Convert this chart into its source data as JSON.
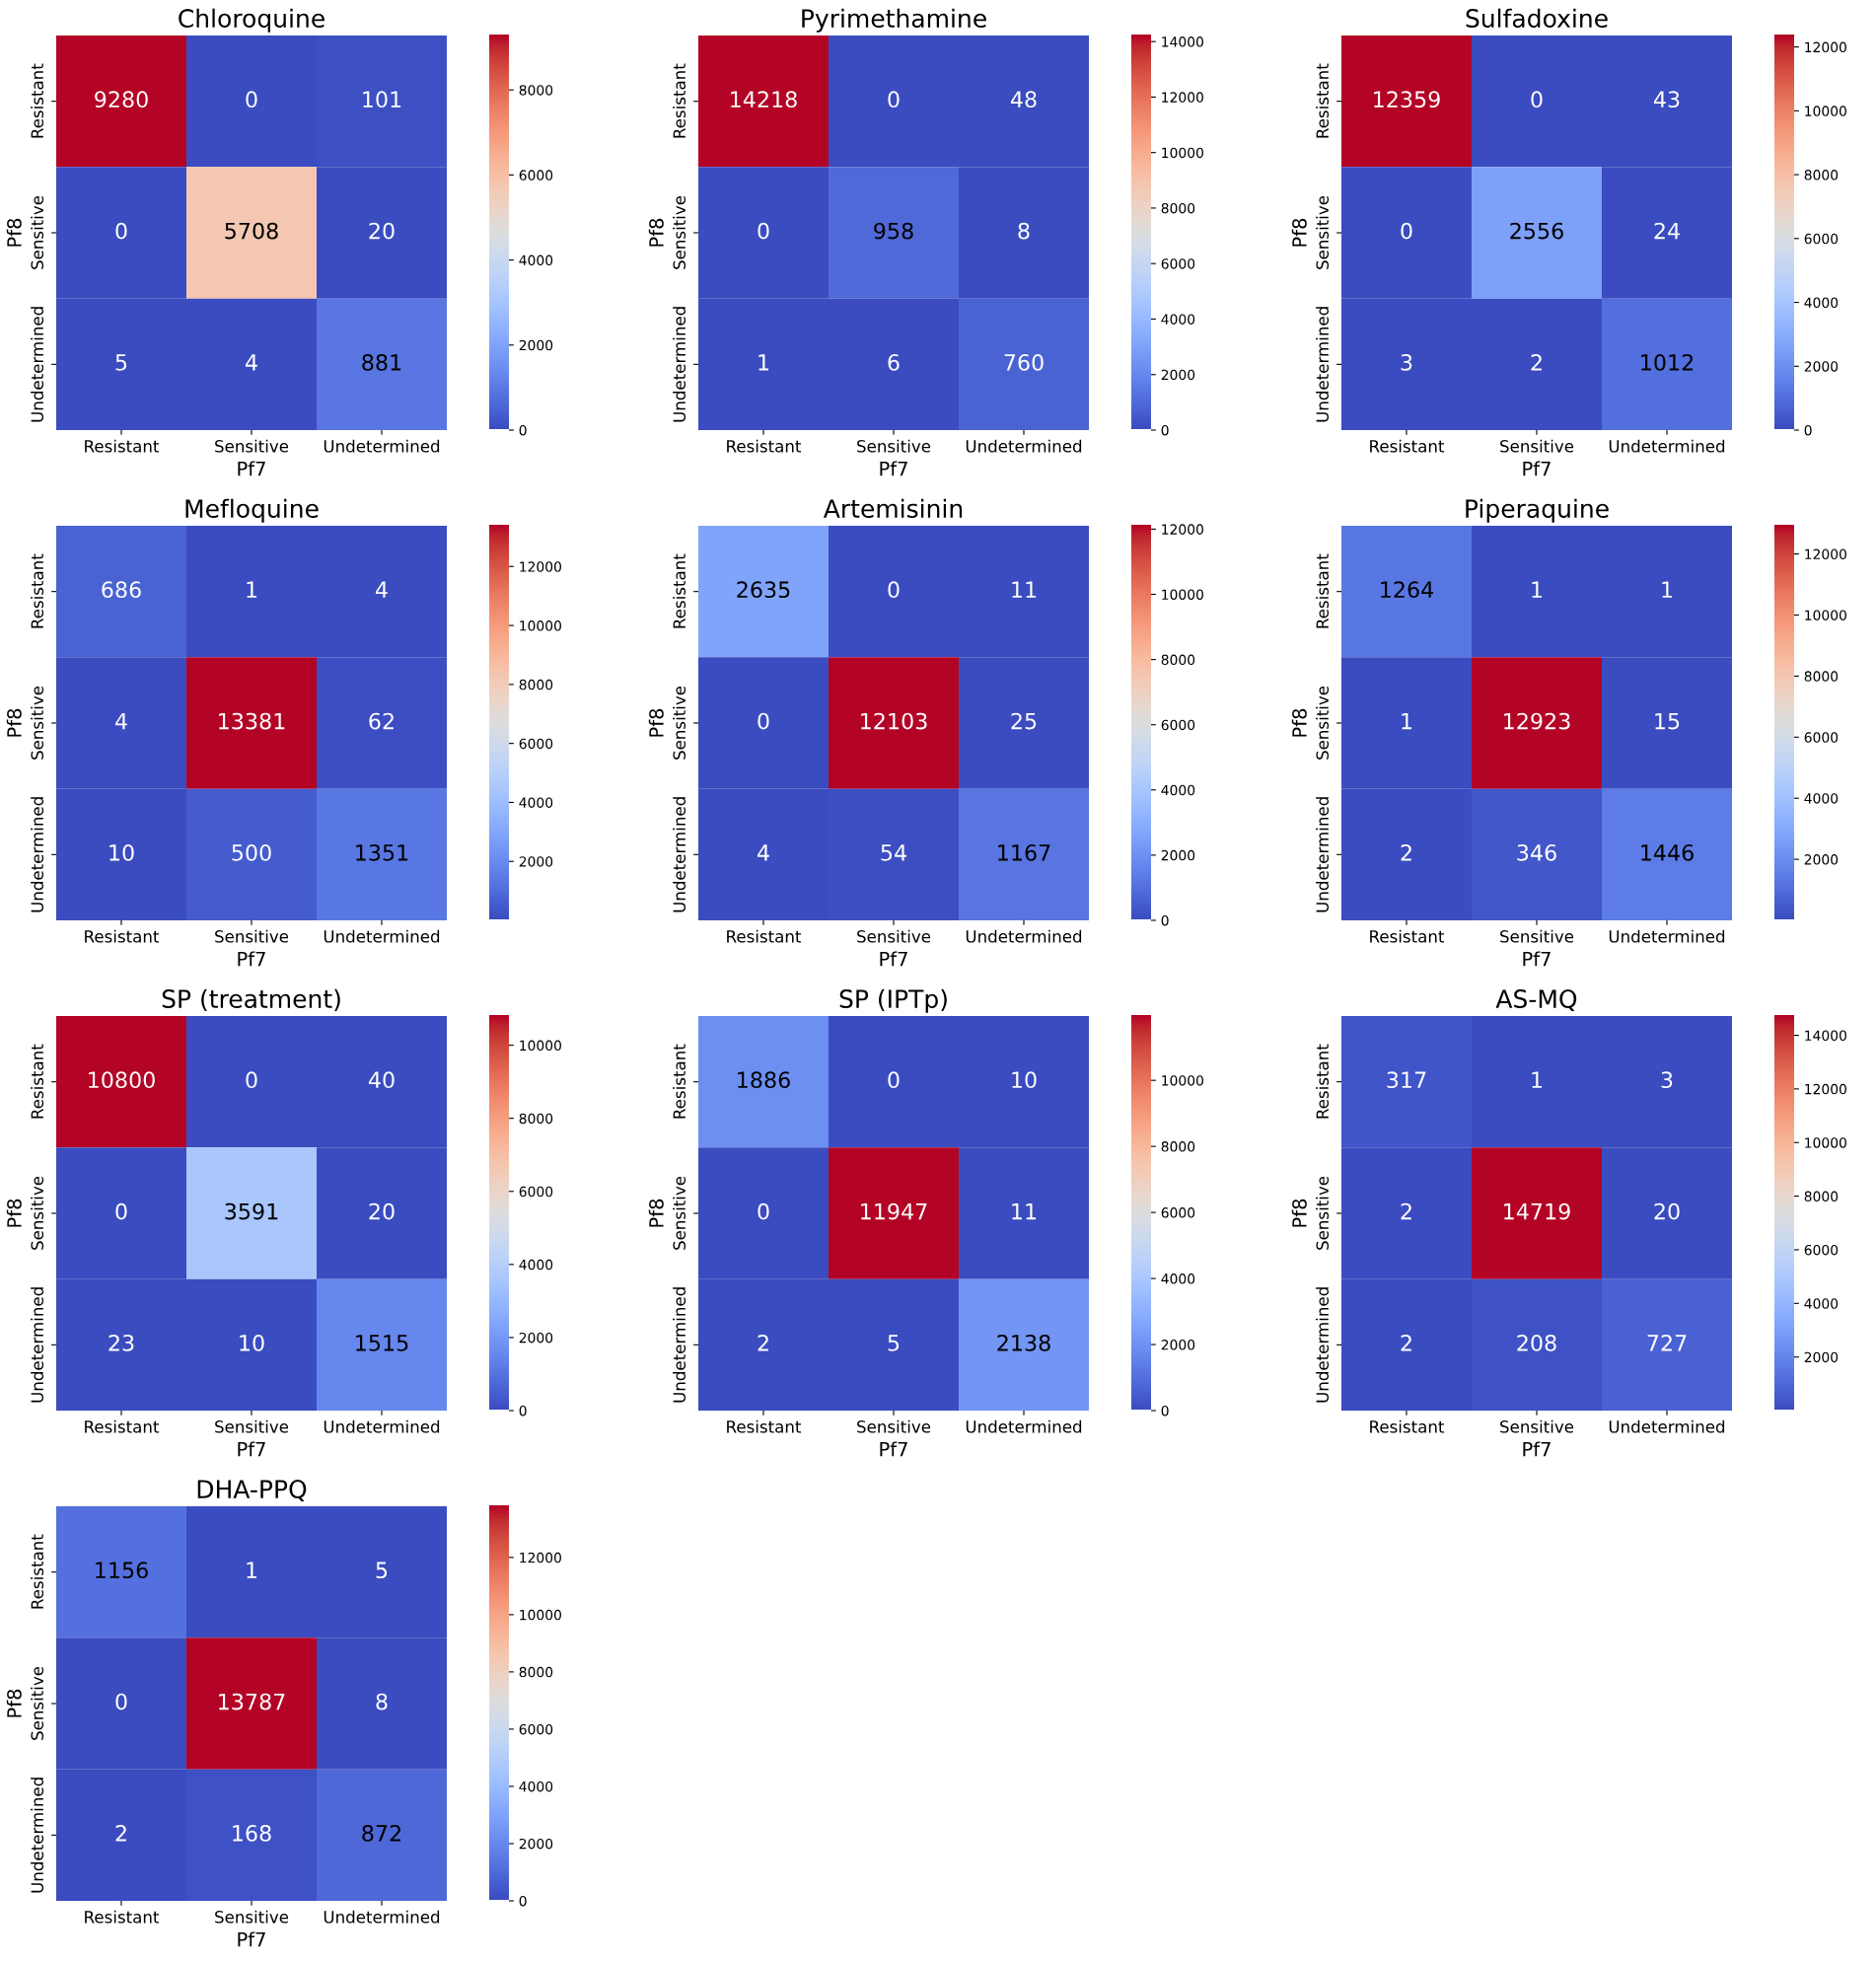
{
  "chart_data": [
    {
      "type": "heatmap",
      "title": "Chloroquine",
      "xlabel": "Pf7",
      "ylabel": "Pf8",
      "categories": [
        "Resistant",
        "Sensitive",
        "Undetermined"
      ],
      "y_categories": [
        "Resistant",
        "Sensitive",
        "Undetermined"
      ],
      "cells": [
        [
          9280,
          0,
          101
        ],
        [
          0,
          5708,
          20
        ],
        [
          5,
          4,
          881
        ]
      ],
      "clim": [
        0,
        9280
      ],
      "cticks": [
        0,
        2000,
        4000,
        6000,
        8000
      ],
      "data_labels": true
    },
    {
      "type": "heatmap",
      "title": "Pyrimethamine",
      "xlabel": "Pf7",
      "ylabel": "Pf8",
      "categories": [
        "Resistant",
        "Sensitive",
        "Undetermined"
      ],
      "y_categories": [
        "Resistant",
        "Sensitive",
        "Undetermined"
      ],
      "cells": [
        [
          14218,
          0,
          48
        ],
        [
          0,
          958,
          8
        ],
        [
          1,
          6,
          760
        ]
      ],
      "clim": [
        0,
        14218
      ],
      "cticks": [
        0,
        2000,
        4000,
        6000,
        8000,
        10000,
        12000,
        14000
      ],
      "data_labels": true
    },
    {
      "type": "heatmap",
      "title": "Sulfadoxine",
      "xlabel": "Pf7",
      "ylabel": "Pf8",
      "categories": [
        "Resistant",
        "Sensitive",
        "Undetermined"
      ],
      "y_categories": [
        "Resistant",
        "Sensitive",
        "Undetermined"
      ],
      "cells": [
        [
          12359,
          0,
          43
        ],
        [
          0,
          2556,
          24
        ],
        [
          3,
          2,
          1012
        ]
      ],
      "clim": [
        0,
        12359
      ],
      "cticks": [
        0,
        2000,
        4000,
        6000,
        8000,
        10000,
        12000
      ],
      "data_labels": true
    },
    {
      "type": "heatmap",
      "title": "Mefloquine",
      "xlabel": "Pf7",
      "ylabel": "Pf8",
      "categories": [
        "Resistant",
        "Sensitive",
        "Undetermined"
      ],
      "y_categories": [
        "Resistant",
        "Sensitive",
        "Undetermined"
      ],
      "cells": [
        [
          686,
          1,
          4
        ],
        [
          4,
          13381,
          62
        ],
        [
          10,
          500,
          1351
        ]
      ],
      "clim": [
        1,
        13381
      ],
      "cticks": [
        2000,
        4000,
        6000,
        8000,
        10000,
        12000
      ],
      "data_labels": true
    },
    {
      "type": "heatmap",
      "title": "Artemisinin",
      "xlabel": "Pf7",
      "ylabel": "Pf8",
      "categories": [
        "Resistant",
        "Sensitive",
        "Undetermined"
      ],
      "y_categories": [
        "Resistant",
        "Sensitive",
        "Undetermined"
      ],
      "cells": [
        [
          2635,
          0,
          11
        ],
        [
          0,
          12103,
          25
        ],
        [
          4,
          54,
          1167
        ]
      ],
      "clim": [
        0,
        12103
      ],
      "cticks": [
        0,
        2000,
        4000,
        6000,
        8000,
        10000,
        12000
      ],
      "data_labels": true
    },
    {
      "type": "heatmap",
      "title": "Piperaquine",
      "xlabel": "Pf7",
      "ylabel": "Pf8",
      "categories": [
        "Resistant",
        "Sensitive",
        "Undetermined"
      ],
      "y_categories": [
        "Resistant",
        "Sensitive",
        "Undetermined"
      ],
      "cells": [
        [
          1264,
          1,
          1
        ],
        [
          1,
          12923,
          15
        ],
        [
          2,
          346,
          1446
        ]
      ],
      "clim": [
        1,
        12923
      ],
      "cticks": [
        2000,
        4000,
        6000,
        8000,
        10000,
        12000
      ],
      "data_labels": true
    },
    {
      "type": "heatmap",
      "title": "SP (treatment)",
      "xlabel": "Pf7",
      "ylabel": "Pf8",
      "categories": [
        "Resistant",
        "Sensitive",
        "Undetermined"
      ],
      "y_categories": [
        "Resistant",
        "Sensitive",
        "Undetermined"
      ],
      "cells": [
        [
          10800,
          0,
          40
        ],
        [
          0,
          3591,
          20
        ],
        [
          23,
          10,
          1515
        ]
      ],
      "clim": [
        0,
        10800
      ],
      "cticks": [
        0,
        2000,
        4000,
        6000,
        8000,
        10000
      ],
      "data_labels": true
    },
    {
      "type": "heatmap",
      "title": "SP (IPTp)",
      "xlabel": "Pf7",
      "ylabel": "Pf8",
      "categories": [
        "Resistant",
        "Sensitive",
        "Undetermined"
      ],
      "y_categories": [
        "Resistant",
        "Sensitive",
        "Undetermined"
      ],
      "cells": [
        [
          1886,
          0,
          10
        ],
        [
          0,
          11947,
          11
        ],
        [
          2,
          5,
          2138
        ]
      ],
      "clim": [
        0,
        11947
      ],
      "cticks": [
        0,
        2000,
        4000,
        6000,
        8000,
        10000
      ],
      "data_labels": true
    },
    {
      "type": "heatmap",
      "title": "AS-MQ",
      "xlabel": "Pf7",
      "ylabel": "Pf8",
      "categories": [
        "Resistant",
        "Sensitive",
        "Undetermined"
      ],
      "y_categories": [
        "Resistant",
        "Sensitive",
        "Undetermined"
      ],
      "cells": [
        [
          317,
          1,
          3
        ],
        [
          2,
          14719,
          20
        ],
        [
          2,
          208,
          727
        ]
      ],
      "clim": [
        1,
        14719
      ],
      "cticks": [
        2000,
        4000,
        6000,
        8000,
        10000,
        12000,
        14000
      ],
      "data_labels": true
    },
    {
      "type": "heatmap",
      "title": "DHA-PPQ",
      "xlabel": "Pf7",
      "ylabel": "Pf8",
      "categories": [
        "Resistant",
        "Sensitive",
        "Undetermined"
      ],
      "y_categories": [
        "Resistant",
        "Sensitive",
        "Undetermined"
      ],
      "cells": [
        [
          1156,
          1,
          5
        ],
        [
          0,
          13787,
          8
        ],
        [
          2,
          168,
          872
        ]
      ],
      "clim": [
        0,
        13787
      ],
      "cticks": [
        0,
        2000,
        4000,
        6000,
        8000,
        10000,
        12000
      ],
      "data_labels": true
    }
  ]
}
